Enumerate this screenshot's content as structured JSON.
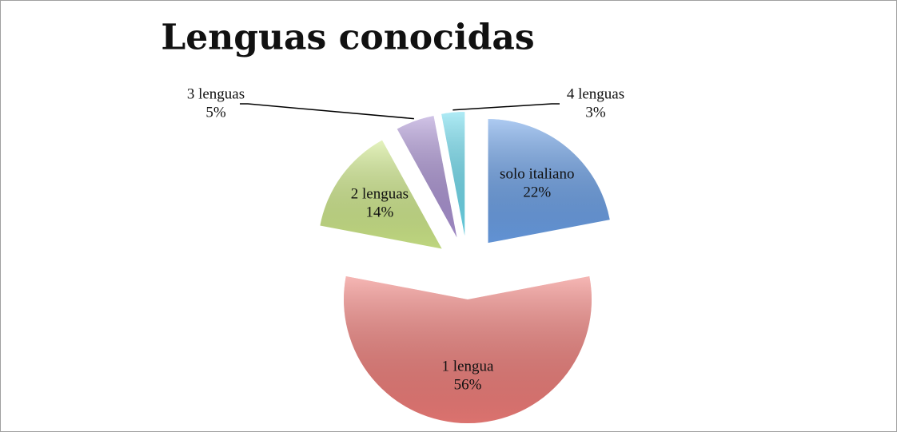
{
  "chart_data": {
    "type": "pie",
    "title": "Lenguas conocidas",
    "categories": [
      "solo italiano",
      "1 lengua",
      "2 lenguas",
      "3 lenguas",
      "4 lenguas"
    ],
    "values": [
      22,
      56,
      14,
      5,
      3
    ],
    "value_labels": [
      "22%",
      "56%",
      "14%",
      "5%",
      "3%"
    ],
    "colors": [
      "#6a9fe6",
      "#ee7c78",
      "#cfe98a",
      "#ab93d3",
      "#6edbee"
    ]
  }
}
